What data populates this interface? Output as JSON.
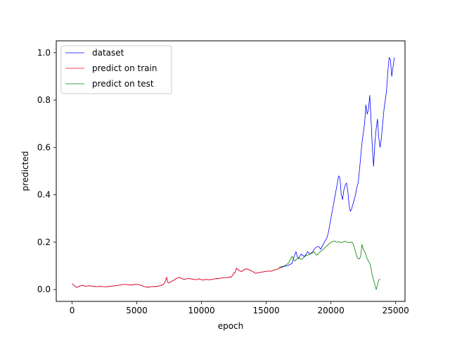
{
  "chart_data": {
    "type": "line",
    "title": "",
    "xlabel": "epoch",
    "ylabel": "predicted",
    "xlim": [
      -1225,
      25725
    ],
    "ylim": [
      -0.05,
      1.05
    ],
    "xticks": [
      0,
      5000,
      10000,
      15000,
      20000,
      25000
    ],
    "yticks": [
      0.0,
      0.2,
      0.4,
      0.6,
      0.8,
      1.0
    ],
    "xtick_labels": [
      "0",
      "5000",
      "10000",
      "15000",
      "20000",
      "25000"
    ],
    "ytick_labels": [
      "0.0",
      "0.2",
      "0.4",
      "0.6",
      "0.8",
      "1.0"
    ],
    "grid": false,
    "legend": {
      "placement": "top-left",
      "entries": [
        "dataset",
        "predict on train",
        "predict on test"
      ]
    },
    "series": [
      {
        "name": "dataset",
        "color": "#0000ff",
        "x_start": 0,
        "x_step": 100,
        "values": [
          0.025,
          0.02,
          0.015,
          0.01,
          0.01,
          0.012,
          0.015,
          0.016,
          0.018,
          0.016,
          0.015,
          0.014,
          0.015,
          0.016,
          0.016,
          0.015,
          0.014,
          0.013,
          0.013,
          0.012,
          0.012,
          0.013,
          0.013,
          0.013,
          0.012,
          0.012,
          0.011,
          0.012,
          0.013,
          0.013,
          0.014,
          0.015,
          0.015,
          0.016,
          0.017,
          0.017,
          0.018,
          0.019,
          0.02,
          0.021,
          0.021,
          0.022,
          0.021,
          0.02,
          0.02,
          0.019,
          0.019,
          0.02,
          0.021,
          0.022,
          0.022,
          0.021,
          0.02,
          0.018,
          0.016,
          0.014,
          0.012,
          0.011,
          0.01,
          0.01,
          0.011,
          0.012,
          0.012,
          0.013,
          0.013,
          0.013,
          0.014,
          0.015,
          0.016,
          0.018,
          0.02,
          0.025,
          0.035,
          0.052,
          0.03,
          0.028,
          0.032,
          0.035,
          0.038,
          0.04,
          0.044,
          0.048,
          0.05,
          0.052,
          0.048,
          0.046,
          0.044,
          0.042,
          0.045,
          0.046,
          0.047,
          0.046,
          0.045,
          0.044,
          0.043,
          0.042,
          0.042,
          0.043,
          0.045,
          0.043,
          0.042,
          0.04,
          0.041,
          0.042,
          0.043,
          0.042,
          0.041,
          0.042,
          0.043,
          0.044,
          0.045,
          0.046,
          0.046,
          0.046,
          0.047,
          0.048,
          0.049,
          0.05,
          0.05,
          0.05,
          0.051,
          0.052,
          0.052,
          0.053,
          0.06,
          0.07,
          0.072,
          0.09,
          0.085,
          0.08,
          0.078,
          0.076,
          0.08,
          0.085,
          0.086,
          0.088,
          0.085,
          0.082,
          0.08,
          0.078,
          0.075,
          0.07,
          0.068,
          0.07,
          0.072,
          0.072,
          0.073,
          0.074,
          0.075,
          0.076,
          0.077,
          0.078,
          0.078,
          0.077,
          0.078,
          0.08,
          0.082,
          0.084,
          0.085,
          0.087,
          0.09,
          0.092,
          0.094,
          0.096,
          0.098,
          0.1,
          0.1,
          0.102,
          0.105,
          0.108,
          0.11,
          0.13,
          0.145,
          0.16,
          0.14,
          0.13,
          0.14,
          0.15,
          0.145,
          0.14,
          0.142,
          0.15,
          0.16,
          0.155,
          0.15,
          0.155,
          0.16,
          0.17,
          0.175,
          0.18,
          0.18,
          0.18,
          0.17,
          0.18,
          0.19,
          0.2,
          0.21,
          0.22,
          0.24,
          0.27,
          0.3,
          0.33,
          0.36,
          0.39,
          0.42,
          0.45,
          0.48,
          0.47,
          0.4,
          0.38,
          0.42,
          0.44,
          0.45,
          0.42,
          0.36,
          0.33,
          0.34,
          0.36,
          0.38,
          0.4,
          0.43,
          0.45,
          0.5,
          0.56,
          0.62,
          0.66,
          0.7,
          0.78,
          0.74,
          0.76,
          0.82,
          0.72,
          0.6,
          0.52,
          0.62,
          0.68,
          0.72,
          0.64,
          0.6,
          0.64,
          0.7,
          0.76,
          0.8,
          0.84,
          0.92,
          0.98,
          0.97,
          0.9,
          0.94,
          0.98
        ]
      },
      {
        "name": "predict on train",
        "color": "#ff0000",
        "x_start": 0,
        "x_step": 100,
        "values": [
          0.025,
          0.02,
          0.015,
          0.01,
          0.01,
          0.012,
          0.015,
          0.016,
          0.018,
          0.016,
          0.015,
          0.014,
          0.015,
          0.016,
          0.016,
          0.015,
          0.014,
          0.013,
          0.013,
          0.012,
          0.012,
          0.013,
          0.013,
          0.013,
          0.012,
          0.012,
          0.011,
          0.012,
          0.013,
          0.013,
          0.014,
          0.015,
          0.015,
          0.016,
          0.017,
          0.017,
          0.018,
          0.019,
          0.02,
          0.021,
          0.021,
          0.022,
          0.021,
          0.02,
          0.02,
          0.019,
          0.019,
          0.02,
          0.021,
          0.022,
          0.022,
          0.021,
          0.02,
          0.018,
          0.016,
          0.014,
          0.012,
          0.011,
          0.01,
          0.01,
          0.011,
          0.012,
          0.012,
          0.013,
          0.013,
          0.013,
          0.014,
          0.015,
          0.016,
          0.018,
          0.02,
          0.025,
          0.035,
          0.052,
          0.03,
          0.028,
          0.032,
          0.035,
          0.038,
          0.04,
          0.044,
          0.048,
          0.05,
          0.052,
          0.048,
          0.046,
          0.044,
          0.042,
          0.045,
          0.046,
          0.047,
          0.046,
          0.045,
          0.044,
          0.043,
          0.042,
          0.042,
          0.043,
          0.045,
          0.043,
          0.042,
          0.04,
          0.041,
          0.042,
          0.043,
          0.042,
          0.041,
          0.042,
          0.043,
          0.044,
          0.045,
          0.046,
          0.046,
          0.046,
          0.047,
          0.048,
          0.049,
          0.05,
          0.05,
          0.05,
          0.051,
          0.052,
          0.052,
          0.053,
          0.06,
          0.07,
          0.072,
          0.09,
          0.085,
          0.08,
          0.078,
          0.076,
          0.08,
          0.085,
          0.086,
          0.088,
          0.085,
          0.082,
          0.08,
          0.078,
          0.075,
          0.07,
          0.068,
          0.07,
          0.072,
          0.072,
          0.073,
          0.074,
          0.075,
          0.076,
          0.077,
          0.078,
          0.078,
          0.077,
          0.078,
          0.08,
          0.082,
          0.084,
          0.085,
          0.087,
          0.09,
          0.092,
          0.094
        ]
      },
      {
        "name": "predict on test",
        "color": "#008000",
        "x_start": 16000,
        "x_step": 100,
        "values": [
          0.095,
          0.096,
          0.097,
          0.098,
          0.1,
          0.103,
          0.107,
          0.11,
          0.12,
          0.13,
          0.14,
          0.13,
          0.12,
          0.125,
          0.13,
          0.135,
          0.13,
          0.128,
          0.13,
          0.135,
          0.14,
          0.145,
          0.145,
          0.148,
          0.15,
          0.152,
          0.155,
          0.16,
          0.15,
          0.145,
          0.15,
          0.155,
          0.16,
          0.165,
          0.17,
          0.175,
          0.18,
          0.185,
          0.19,
          0.195,
          0.2,
          0.2,
          0.205,
          0.205,
          0.2,
          0.2,
          0.202,
          0.2,
          0.198,
          0.2,
          0.202,
          0.204,
          0.2,
          0.2,
          0.198,
          0.2,
          0.2,
          0.195,
          0.18,
          0.16,
          0.14,
          0.13,
          0.13,
          0.14,
          0.19,
          0.17,
          0.16,
          0.15,
          0.13,
          0.12,
          0.11,
          0.09,
          0.06,
          0.04,
          0.02,
          0.0,
          0.02,
          0.04,
          0.045
        ]
      }
    ]
  }
}
